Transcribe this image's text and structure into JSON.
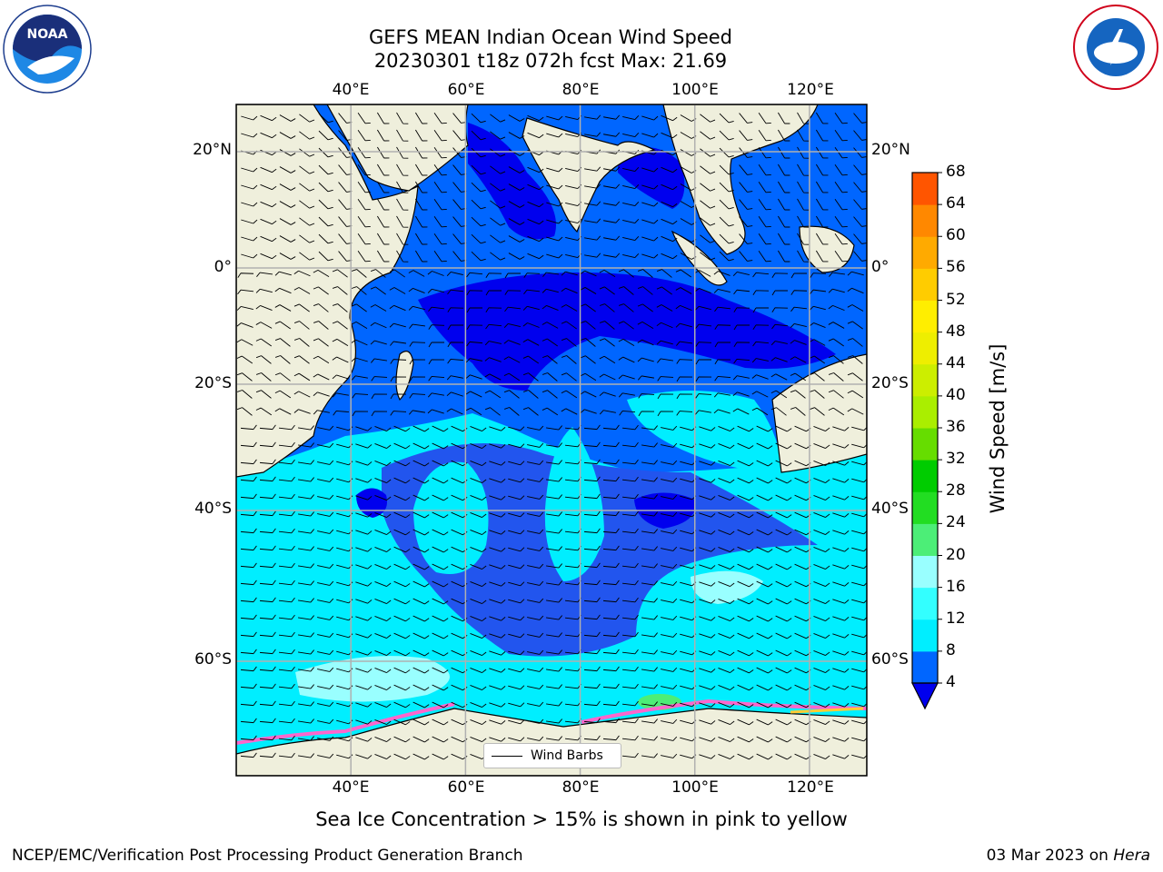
{
  "header": {
    "title_line1": "GEFS MEAN Indian Ocean Wind Speed",
    "title_line2": "20230301 t18z 072h fcst   Max: 21.69"
  },
  "map": {
    "projection": "cylindrical",
    "lon_range": [
      20,
      130
    ],
    "lat_range": [
      -73,
      27.5
    ],
    "lon_ticks": [
      "40°E",
      "60°E",
      "80°E",
      "100°E",
      "120°E"
    ],
    "lat_ticks_left": [
      "20°N",
      "0°",
      "20°S",
      "40°S",
      "60°S"
    ],
    "lat_ticks_right": [
      "20°N",
      "0°",
      "20°S",
      "40°S",
      "60°S"
    ],
    "land_color": "#efefdc",
    "grid": true
  },
  "colorbar": {
    "label": "Wind Speed [m/s]",
    "ticks": [
      "4",
      "8",
      "12",
      "16",
      "20",
      "24",
      "28",
      "32",
      "36",
      "40",
      "44",
      "48",
      "52",
      "56",
      "60",
      "64",
      "68"
    ],
    "colors": [
      "#0066ff",
      "#00eeff",
      "#33ffff",
      "#99ffff",
      "#4cee77",
      "#22dd22",
      "#00cc00",
      "#66dd00",
      "#aaee00",
      "#ccee00",
      "#eeee00",
      "#ffee00",
      "#ffcc00",
      "#ffaa00",
      "#ff8800",
      "#ff5500",
      "#ff2200",
      "#ff0000"
    ],
    "under_color": "#0000ee",
    "field_colors": {
      "lt4": "#0000ee",
      "4_8": "#0066ff",
      "8_12": "#2255ee",
      "12_16": "#00eeff",
      "16_20": "#99ffff",
      "20_24": "#4cee77"
    }
  },
  "legend": {
    "label": "Wind Barbs"
  },
  "caption": "Sea Ice Concentration > 15% is shown in pink to yellow",
  "footer": {
    "left": "NCEP/EMC/Verification Post Processing Product Generation Branch",
    "right_prefix": "03 Mar 2023 on ",
    "right_host": "Hera"
  },
  "logos": {
    "left": "NOAA",
    "right": "NATIONAL WEATHER SERVICE"
  }
}
